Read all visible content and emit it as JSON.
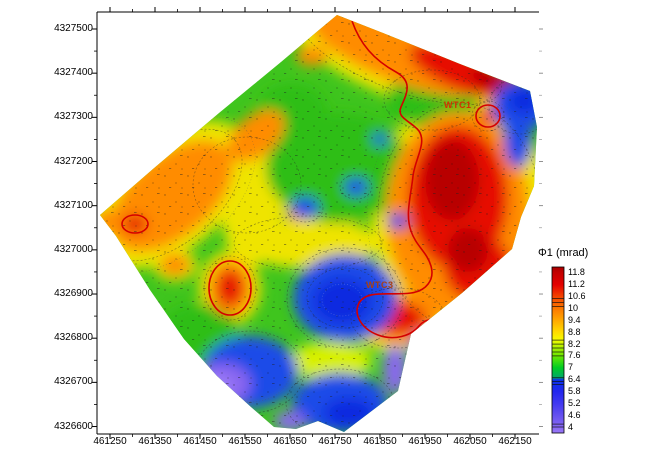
{
  "chart_data": {
    "type": "heatmap",
    "subtype": "filled-contour-map",
    "title": "",
    "xlabel": "",
    "ylabel": "",
    "grid": "off",
    "x_ticks": [
      "461250",
      "461350",
      "461450",
      "461550",
      "461650",
      "461750",
      "461850",
      "461950",
      "462050",
      "462150"
    ],
    "y_ticks": [
      "4327500",
      "4327400",
      "4327300",
      "4327200",
      "4327100",
      "4327000",
      "4326900",
      "4326800",
      "4326700",
      "4326600"
    ],
    "x_tick_interval": 100,
    "y_tick_interval": 100,
    "xlim": [
      461220,
      462205
    ],
    "ylim": [
      4326585,
      4327540
    ],
    "colorbar": {
      "title": "Φ1 (mrad)",
      "position": "right",
      "tick_labels": [
        "11.8",
        "11.2",
        "10.6",
        "10",
        "9.4",
        "8.8",
        "8.2",
        "7.6",
        "7",
        "6.4",
        "5.8",
        "5.2",
        "4.6",
        "4"
      ],
      "value_range": [
        3.7,
        12.1
      ],
      "interval": 0.6,
      "colors_top_to_bottom": [
        "#A80000",
        "#D00000",
        "#EE1800",
        "#FA5800",
        "#FF8E00",
        "#FFC400",
        "#FFF400",
        "#BEF200",
        "#50E000",
        "#00C22E",
        "#0A3CEC",
        "#2B2BF0",
        "#4E40F0",
        "#7258F0",
        "#9274F6"
      ]
    },
    "annotations": [
      {
        "label": "WTC1",
        "x": 462030,
        "y": 4327320,
        "color": "#D43000"
      },
      {
        "label": "WTC3",
        "x": 461860,
        "y": 4326915,
        "color": "#A84014"
      }
    ],
    "contour_line_highlight": {
      "color": "#D40000",
      "note": "thick red contour outlining high-phase (~10 mrad) zones"
    },
    "grid_estimate": {
      "units": "mrad",
      "x": [
        461300,
        461400,
        461500,
        461600,
        461700,
        461800,
        461900,
        462000,
        462100
      ],
      "y_top_to_bottom": [
        4327450,
        4327350,
        4327250,
        4327150,
        4327050,
        4326950,
        4326850,
        4326750,
        4326650
      ],
      "values": [
        [
          null,
          null,
          null,
          null,
          9.8,
          10.6,
          11.0,
          null,
          null
        ],
        [
          null,
          null,
          null,
          8.6,
          9.6,
          8.8,
          8.4,
          8.3,
          6.0
        ],
        [
          null,
          null,
          9.8,
          10.2,
          9.2,
          7.6,
          9.2,
          11.2,
          8.0
        ],
        [
          null,
          9.8,
          9.4,
          9.0,
          7.8,
          6.4,
          8.2,
          11.4,
          10.8
        ],
        [
          9.6,
          9.0,
          7.5,
          8.8,
          7.4,
          7.6,
          9.0,
          11.4,
          11.0
        ],
        [
          null,
          9.3,
          10.6,
          7.2,
          6.0,
          5.8,
          7.4,
          9.8,
          null
        ],
        [
          null,
          null,
          7.0,
          7.5,
          5.6,
          9.0,
          11.0,
          null,
          null
        ],
        [
          null,
          null,
          5.0,
          5.8,
          7.2,
          7.6,
          4.6,
          null,
          null
        ],
        [
          null,
          null,
          null,
          5.4,
          5.4,
          6.2,
          null,
          null,
          null
        ]
      ]
    }
  }
}
